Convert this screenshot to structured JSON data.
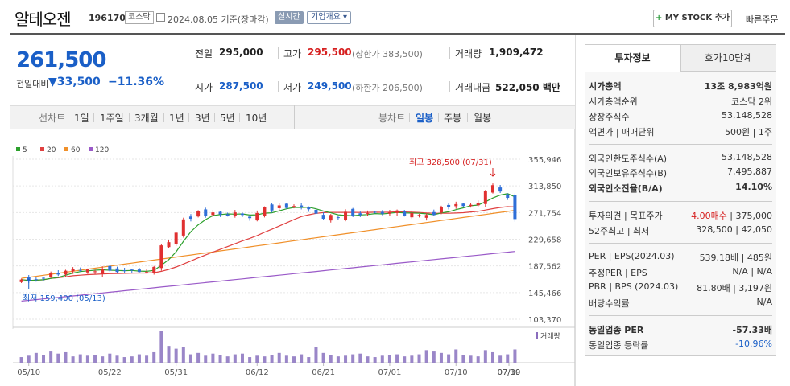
{
  "header": {
    "stock_name": "알테오젠",
    "code": "196170",
    "market": "코스닥",
    "date_text": "2024.08.05 기준(장마감)",
    "realtime": "실시간",
    "company_info": "기업개요 ▾",
    "mystock": "MY STOCK 추가",
    "mystock_plus": "+",
    "quick_order": "빠른주문"
  },
  "price": {
    "current": "261,500",
    "diff_label": "전일대비",
    "diff": "▼33,500",
    "rate": "−11.36%"
  },
  "quote": {
    "prev_label": "전일",
    "prev": "295,000",
    "high_label": "고가",
    "high": "295,500",
    "upper_limit": "(상한가 383,500)",
    "volume_label": "거래량",
    "volume": "1,909,472",
    "open_label": "시가",
    "open": "287,500",
    "low_label": "저가",
    "low": "249,500",
    "lower_limit": "(하한가 206,500)",
    "amount_label": "거래대금",
    "amount": "522,050 백만"
  },
  "toolbar": {
    "line_chart": "선차트",
    "periods": [
      "1일",
      "1주일",
      "3개월",
      "1년",
      "3년",
      "5년",
      "10년"
    ],
    "candle_chart": "봉차트",
    "candle_periods": [
      "일봉",
      "주봉",
      "월봉"
    ]
  },
  "panel": {
    "tab_invest": "투자정보",
    "tab_ask": "호가10단계",
    "rows": [
      {
        "l": "시가총액",
        "r": "13조 8,983억원",
        "bold": true
      },
      {
        "l": "시가총액순위",
        "r": "코스닥 2위"
      },
      {
        "l": "상장주식수",
        "r": "53,148,528"
      },
      {
        "l": "액면가 | 매매단위",
        "r": "500원 | 1주"
      },
      {
        "l": "외국인한도주식수(A)",
        "r": "53,148,528"
      },
      {
        "l": "외국인보유주식수(B)",
        "r": "7,495,887"
      },
      {
        "l": "외국인소진율(B/A)",
        "r": "14.10%",
        "bold": true
      },
      {
        "l": "투자의견 | 목표주가",
        "r_red": "4.00매수",
        "r": " | 375,000"
      },
      {
        "l": "52주최고 | 최저",
        "r": "328,500 | 42,050"
      },
      {
        "l": "PER | EPS(2024.03)",
        "r": "539.18배 | 485원"
      },
      {
        "l": "추정PER | EPS",
        "r": "N/A | N/A"
      },
      {
        "l": "PBR | BPS (2024.03)",
        "r": "81.80배 | 3,197원"
      },
      {
        "l": "배당수익률",
        "r": "N/A"
      },
      {
        "l": "동일업종 PER",
        "r": "-57.33배",
        "bold": true
      },
      {
        "l": "동일업종 등락률",
        "r_blue": "-10.96%"
      }
    ]
  },
  "chart_data": {
    "type": "candlestick",
    "legend": [
      {
        "name": "5",
        "color": "#2ca02c"
      },
      {
        "name": "20",
        "color": "#e04040"
      },
      {
        "name": "60",
        "color": "#f0902a"
      },
      {
        "name": "120",
        "color": "#9a5ac8"
      }
    ],
    "yticks": [
      "355,946",
      "313,850",
      "271,754",
      "229,658",
      "187,562",
      "145,466",
      "103,370"
    ],
    "ylim": [
      103370,
      355946
    ],
    "xticks": [
      "05/10",
      "05/22",
      "05/31",
      "06/12",
      "06/21",
      "07/01",
      "07/10",
      "07/19",
      "07/30"
    ],
    "high_note": "최고 328,500 (07/31)",
    "low_note": "최저 159,400 (05/13)",
    "volume_label": "거래량",
    "closes": [
      166000,
      163000,
      166000,
      168000,
      176000,
      174000,
      180000,
      183000,
      180000,
      182000,
      179000,
      183000,
      180000,
      178000,
      180000,
      181000,
      178000,
      178000,
      186000,
      220000,
      225000,
      240000,
      261000,
      262000,
      274000,
      266000,
      272000,
      269000,
      267000,
      272000,
      268000,
      263000,
      271000,
      280000,
      275000,
      283000,
      279000,
      282000,
      280000,
      277000,
      270000,
      262000,
      268000,
      264000,
      273000,
      267000,
      268000,
      271000,
      272000,
      270000,
      272000,
      275000,
      267000,
      271000,
      268000,
      268000,
      268000,
      281000,
      280000,
      285000,
      282000,
      284000,
      287000,
      306000,
      315000,
      305000,
      295000,
      261500
    ],
    "volumes": [
      8,
      10,
      14,
      11,
      16,
      13,
      15,
      9,
      12,
      10,
      11,
      9,
      13,
      10,
      8,
      9,
      12,
      10,
      15,
      46,
      24,
      20,
      22,
      12,
      14,
      10,
      13,
      11,
      9,
      12,
      13,
      8,
      10,
      9,
      11,
      14,
      10,
      9,
      12,
      8,
      22,
      14,
      11,
      9,
      10,
      12,
      13,
      9,
      8,
      10,
      11,
      12,
      9,
      10,
      12,
      18,
      16,
      14,
      12,
      19,
      11,
      10,
      9,
      18,
      15,
      10,
      12,
      19
    ]
  }
}
